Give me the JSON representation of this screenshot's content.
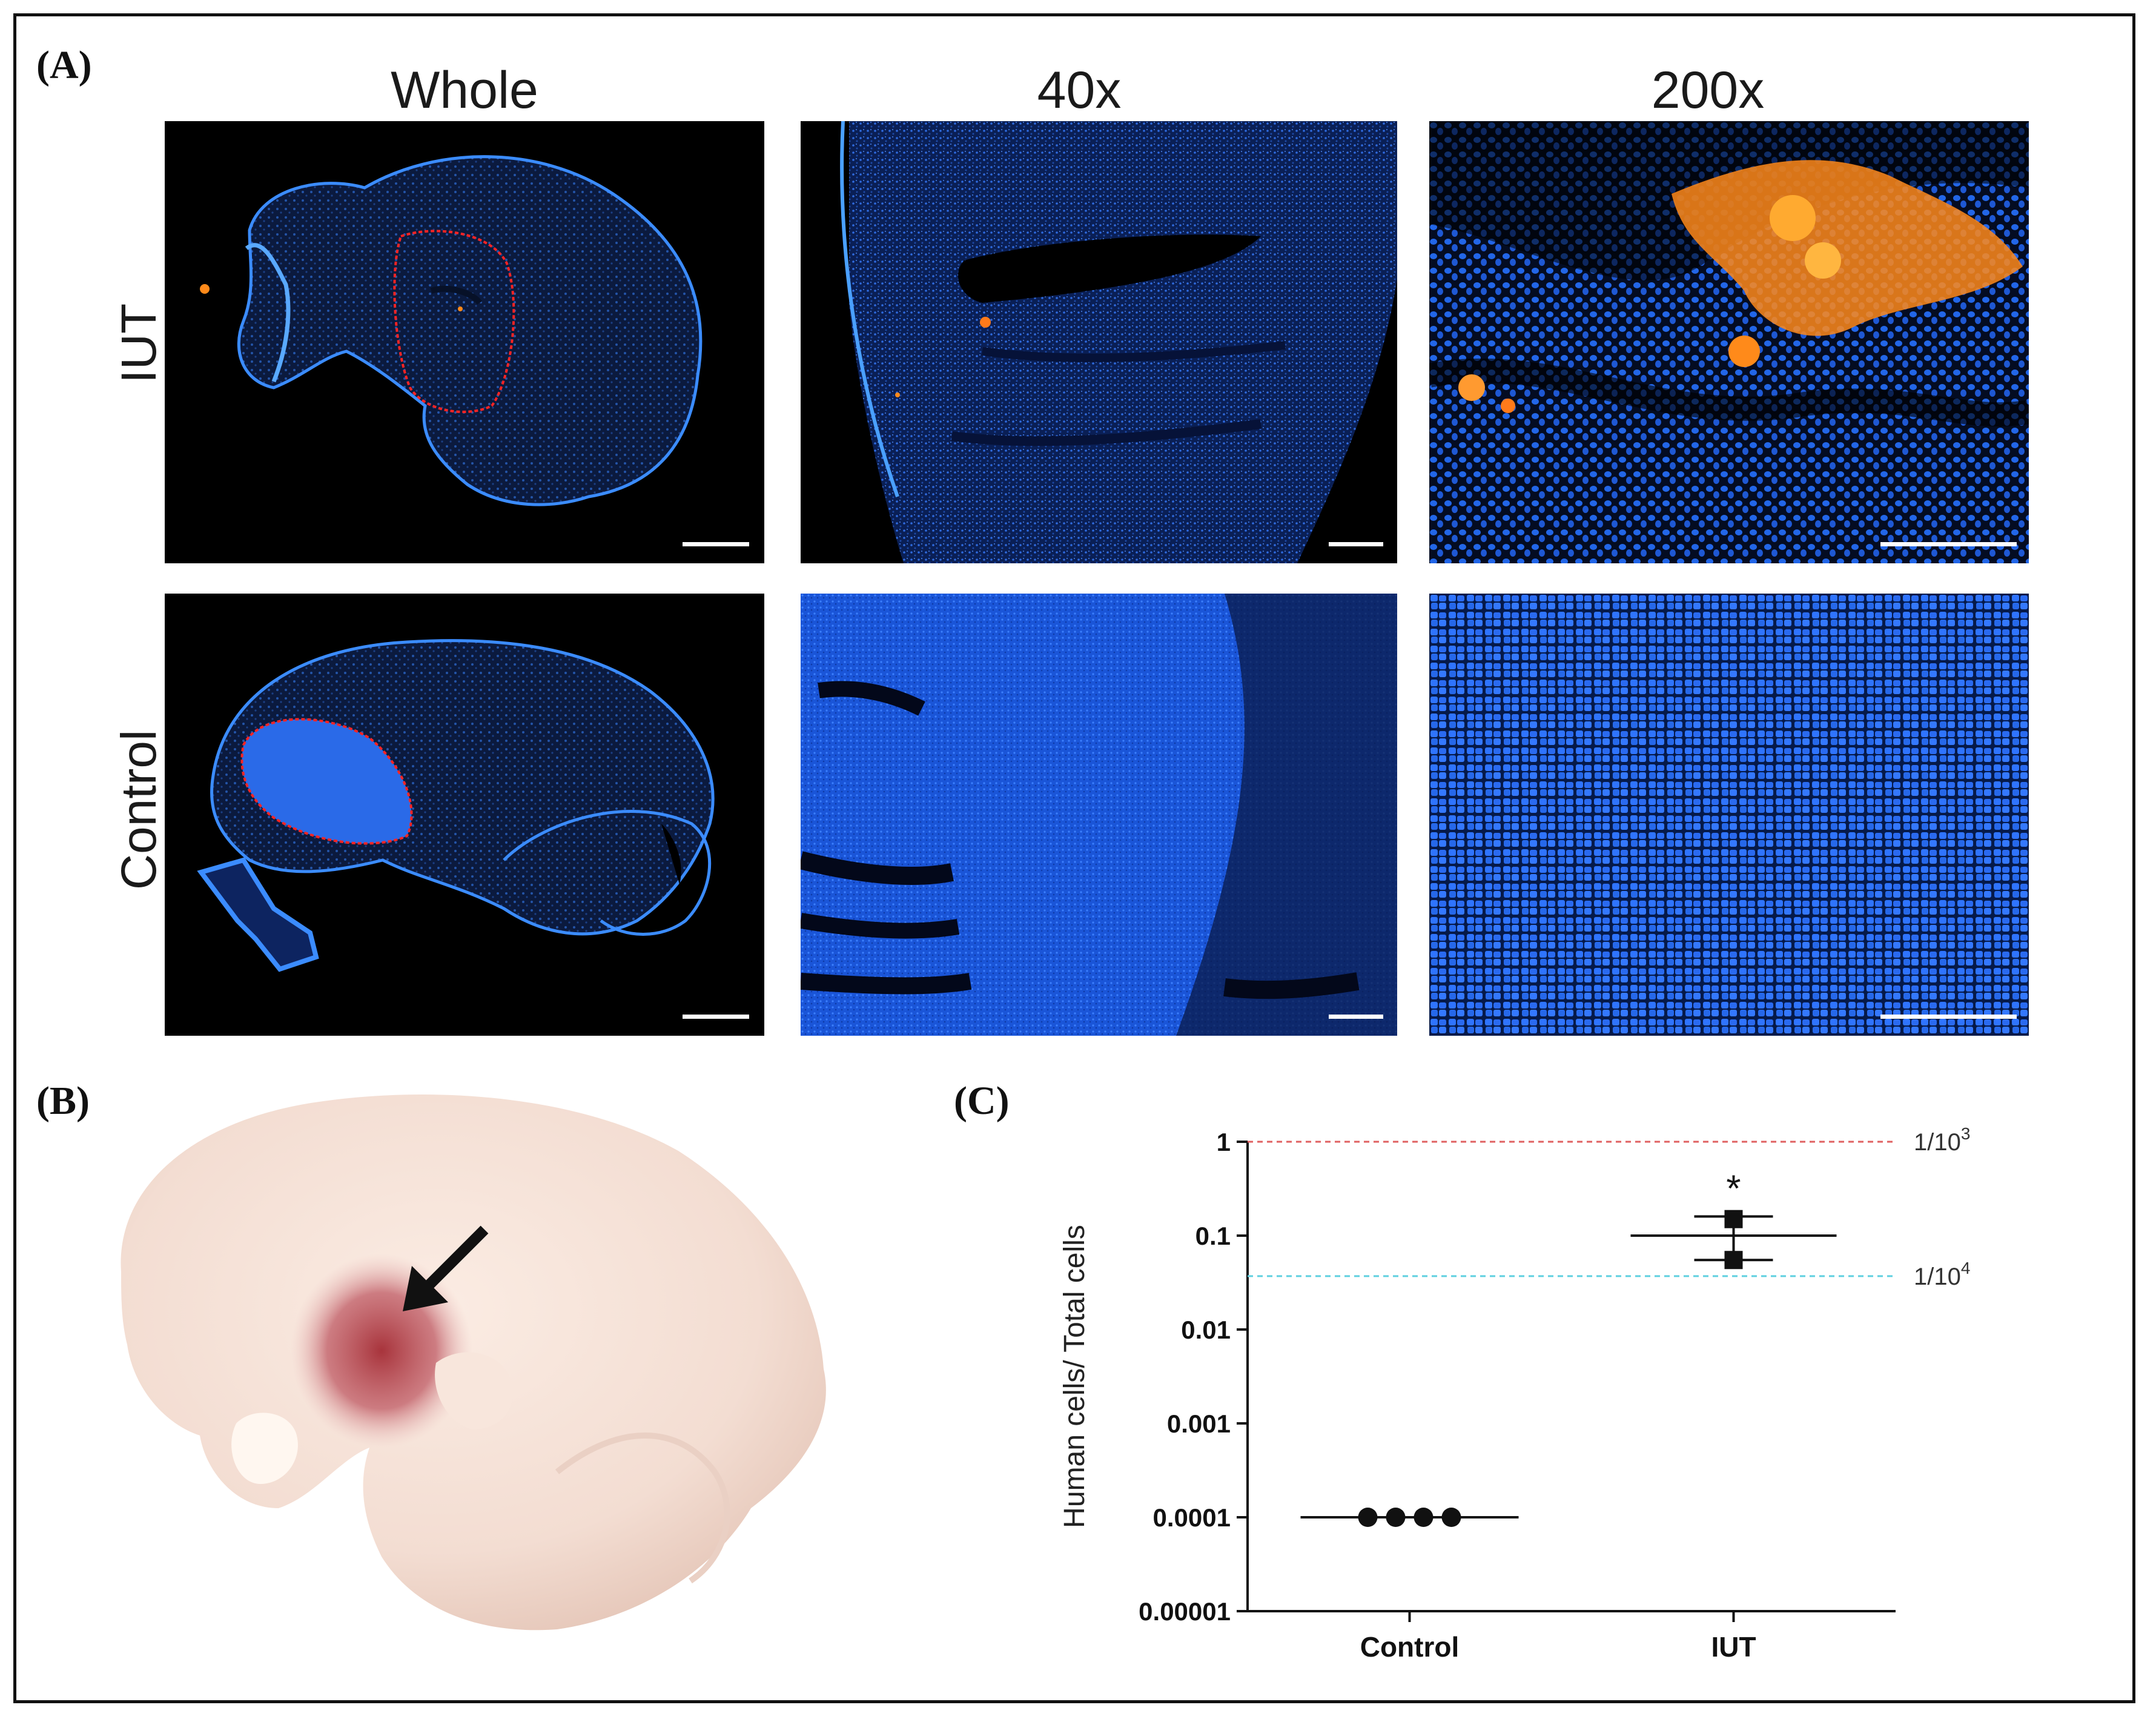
{
  "panels": {
    "a_label": "(A)",
    "b_label": "(B)",
    "c_label": "(C)"
  },
  "microscopy": {
    "columns": [
      "Whole",
      "40x",
      "200x"
    ],
    "rows": [
      "IUT",
      "Control"
    ],
    "colors": {
      "nuclei": "#1e6cff",
      "background": "#000000",
      "cells": "#ff8a1a",
      "outline": "#ff2020"
    }
  },
  "photo": {
    "arrow_icon": "arrow-icon",
    "colors": {
      "tissue": "#f3ddd2",
      "graft": "#a8343c"
    }
  },
  "chart_data": {
    "type": "scatter",
    "ylabel": "Human cells/ Total cells",
    "yscale": "log",
    "ylim": [
      1e-05,
      1
    ],
    "yticks": [
      "1",
      "0.1",
      "0.01",
      "0.001",
      "0.0001",
      "0.00001"
    ],
    "categories": [
      "Control",
      "IUT"
    ],
    "series": [
      {
        "category": "Control",
        "values": [
          0.0001,
          0.0001,
          0.0001,
          0.0001
        ],
        "mean": 0.0001
      },
      {
        "category": "IUT",
        "values": [
          0.15,
          0.055
        ],
        "mean": 0.1,
        "err_high": 0.16,
        "err_low": 0.055
      }
    ],
    "reference_lines": [
      {
        "label": "1/10",
        "exponent": "3",
        "y": 1,
        "color": "#e06060"
      },
      {
        "label": "1/10",
        "exponent": "4",
        "y": 0.037,
        "color": "#5fd0e0"
      }
    ],
    "annotation": "*"
  }
}
